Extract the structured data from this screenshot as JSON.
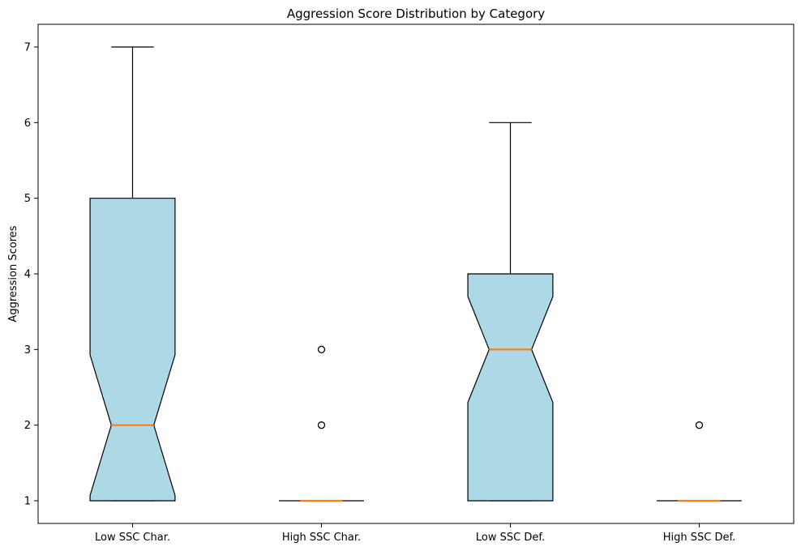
{
  "chart_data": {
    "type": "box",
    "title": "Aggression Score Distribution by Category",
    "xlabel": "",
    "ylabel": "Aggression Scores",
    "ylim": [
      0.7,
      7.3
    ],
    "yticks": [
      "1",
      "2",
      "3",
      "4",
      "5",
      "6",
      "7"
    ],
    "grid": false,
    "notched": true,
    "box_color": "#add8e6",
    "median_color": "#ff7f0e",
    "categories": [
      "Low SSC Char.",
      "High SSC Char.",
      "Low SSC Def.",
      "High SSC Def."
    ],
    "boxes": [
      {
        "category": "Low SSC Char.",
        "whisker_low": 1,
        "q1": 1,
        "median": 2,
        "q3": 5,
        "whisker_high": 7,
        "notch_low": 1.07,
        "notch_high": 2.93,
        "outliers": []
      },
      {
        "category": "High SSC Char.",
        "whisker_low": 1,
        "q1": 1,
        "median": 1,
        "q3": 1,
        "whisker_high": 1,
        "notch_low": 1,
        "notch_high": 1,
        "outliers": [
          2,
          3
        ]
      },
      {
        "category": "Low SSC Def.",
        "whisker_low": 1,
        "q1": 1,
        "median": 3,
        "q3": 4,
        "whisker_high": 6,
        "notch_low": 2.3,
        "notch_high": 3.7,
        "outliers": []
      },
      {
        "category": "High SSC Def.",
        "whisker_low": 1,
        "q1": 1,
        "median": 1,
        "q3": 1,
        "whisker_high": 1,
        "notch_low": 1,
        "notch_high": 1,
        "outliers": [
          2
        ]
      }
    ]
  }
}
